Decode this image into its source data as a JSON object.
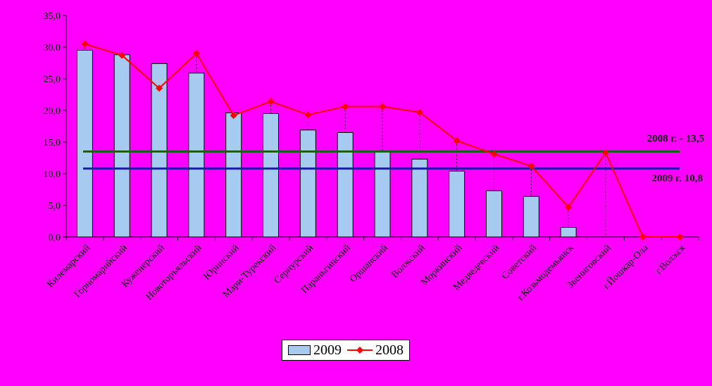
{
  "chart_data": {
    "type": "bar",
    "categories": [
      "Килемарский",
      "Горномарийский",
      "Куженерский",
      "Новоторъяльский",
      "Юринский",
      "Мари-Турекский",
      "Сернурский",
      "Параньгинский",
      "Оршанский",
      "Волжский",
      "Моркинский",
      "Медведевский",
      "Советский",
      "г.Козьмодемьянск",
      "Звениговский",
      "г.Йошкар-Ола",
      "г.Волжск"
    ],
    "series": [
      {
        "name": "2009",
        "type": "bar",
        "color": "#a6caf0",
        "values": [
          29.5,
          28.8,
          27.4,
          25.9,
          19.6,
          19.5,
          16.9,
          16.5,
          13.5,
          12.3,
          10.4,
          7.3,
          6.4,
          1.5,
          0,
          0,
          0
        ]
      },
      {
        "name": "2008",
        "type": "line",
        "color": "#ff0000",
        "values": [
          30.5,
          28.7,
          23.5,
          29.0,
          19.2,
          21.4,
          19.3,
          20.6,
          20.6,
          19.7,
          15.2,
          13.1,
          11.2,
          4.7,
          13.3,
          0,
          0
        ]
      }
    ],
    "reference_lines": [
      {
        "label": "2008 г. - 13,5",
        "value": 13.5,
        "color": "#1c5c1c"
      },
      {
        "label": "2009 г. 10,8",
        "value": 10.8,
        "color": "#1a1aa8"
      }
    ],
    "ylim": [
      0,
      35
    ],
    "yticks": [
      "0,0",
      "5,0",
      "10,0",
      "15,0",
      "20,0",
      "25,0",
      "30,0",
      "35,0"
    ],
    "ytick_values": [
      0,
      5,
      10,
      15,
      20,
      25,
      30,
      35
    ],
    "legend_position": "bottom",
    "grid": false
  },
  "legend": {
    "bar_label": "2009",
    "line_label": "2008"
  }
}
